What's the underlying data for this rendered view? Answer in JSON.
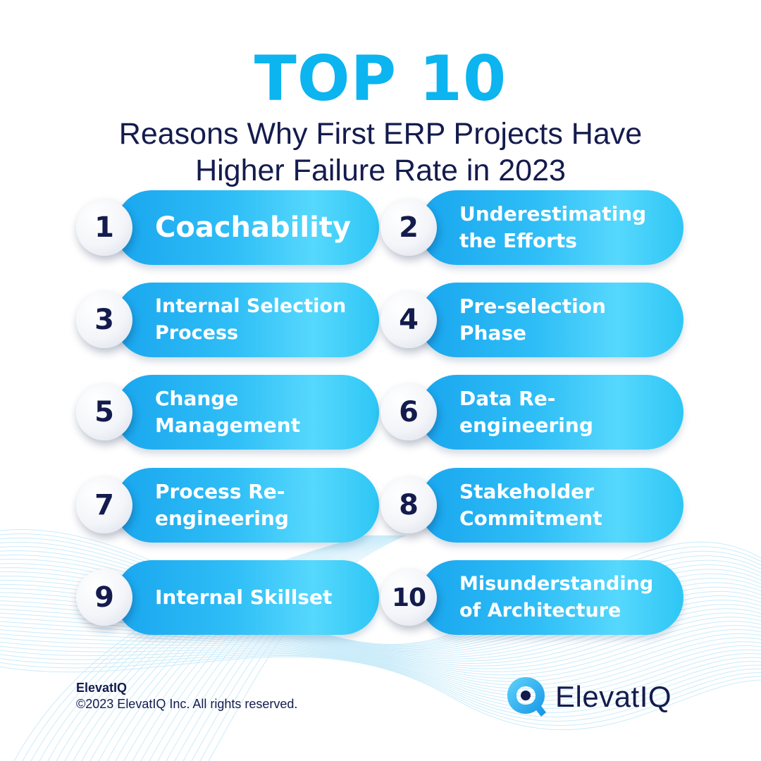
{
  "header": {
    "title": "TOP 10",
    "subtitle_line1": "Reasons Why First ERP Projects Have",
    "subtitle_line2": "Higher Failure Rate in 2023"
  },
  "reasons": [
    {
      "number": "1",
      "line1": "Coachability",
      "line2": ""
    },
    {
      "number": "2",
      "line1": "Underestimating",
      "line2": "the Efforts"
    },
    {
      "number": "3",
      "line1": "Internal Selection",
      "line2": "Process"
    },
    {
      "number": "4",
      "line1": "Pre-selection",
      "line2": "Phase"
    },
    {
      "number": "5",
      "line1": "Change",
      "line2": "Management"
    },
    {
      "number": "6",
      "line1": "Data Re-",
      "line2": "engineering"
    },
    {
      "number": "7",
      "line1": "Process Re-",
      "line2": "engineering"
    },
    {
      "number": "8",
      "line1": "Stakeholder",
      "line2": "Commitment"
    },
    {
      "number": "9",
      "line1": "Internal Skillset",
      "line2": ""
    },
    {
      "number": "10",
      "line1": "Misunderstanding",
      "line2": "of Architecture"
    }
  ],
  "footer": {
    "brand": "ElevatIQ",
    "copyright": "©2023 ElevatIQ Inc. All rights reserved."
  },
  "logo": {
    "text": "ElevatIQ",
    "icon": "magnifier-q-logo-icon"
  },
  "colors": {
    "title": "#0cb4f0",
    "navy": "#141b4d",
    "pill_start": "#19a6ef",
    "pill_end": "#56d8fd"
  }
}
